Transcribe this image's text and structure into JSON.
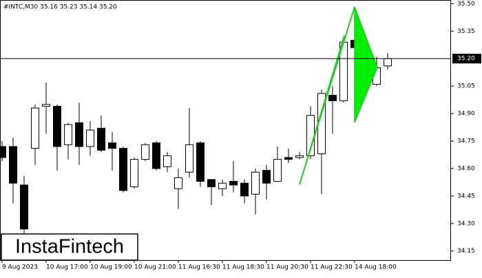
{
  "chart_data": {
    "type": "candlestick",
    "title": "#INTC,M30  35.16 35.23 35.14 35.20",
    "categories": [
      "9 Aug 2023",
      null,
      null,
      null,
      "10 Aug 17:00",
      null,
      null,
      null,
      "10 Aug 19:00",
      null,
      null,
      null,
      "10 Aug 21:00",
      null,
      null,
      null,
      "11 Aug 16:30",
      null,
      null,
      null,
      "11 Aug 18:30",
      null,
      null,
      null,
      "11 Aug 20:30",
      null,
      null,
      null,
      "11 Aug 22:30",
      null,
      null,
      null,
      "14 Aug 18:00",
      null,
      null,
      null
    ],
    "open": [
      34.72,
      34.72,
      34.51,
      34.71,
      34.94,
      34.94,
      34.73,
      34.85,
      34.72,
      34.82,
      34.74,
      34.71,
      34.5,
      34.65,
      34.74,
      34.61,
      34.49,
      34.58,
      34.74,
      34.54,
      34.49,
      34.53,
      34.52,
      34.46,
      34.59,
      34.53,
      34.66,
      34.66,
      34.67,
      34.68,
      35.0,
      34.97,
      35.3,
      35.27,
      35.06,
      35.16
    ],
    "high": [
      34.75,
      34.77,
      34.56,
      34.95,
      35.07,
      34.95,
      34.85,
      34.96,
      34.86,
      34.89,
      34.8,
      34.72,
      34.66,
      34.74,
      34.75,
      34.69,
      34.6,
      34.93,
      34.75,
      34.54,
      34.54,
      34.64,
      34.54,
      34.6,
      34.62,
      34.72,
      34.71,
      34.69,
      34.94,
      35.03,
      35.05,
      35.31,
      35.48,
      35.29,
      35.21,
      35.23
    ],
    "low": [
      34.64,
      34.41,
      34.22,
      34.62,
      34.79,
      34.59,
      34.65,
      34.62,
      34.67,
      34.69,
      34.59,
      34.47,
      34.49,
      34.64,
      34.59,
      34.58,
      34.38,
      34.55,
      34.5,
      34.4,
      34.45,
      34.47,
      34.41,
      34.35,
      34.43,
      34.53,
      34.63,
      34.65,
      34.65,
      34.46,
      34.79,
      34.96,
      35.22,
      35.05,
      35.05,
      35.14
    ],
    "close": [
      34.66,
      34.52,
      34.27,
      34.93,
      34.95,
      34.72,
      34.84,
      34.72,
      34.81,
      34.7,
      34.71,
      34.48,
      34.65,
      34.73,
      34.6,
      34.67,
      34.55,
      34.73,
      34.53,
      34.5,
      34.52,
      34.51,
      34.45,
      34.58,
      34.52,
      34.65,
      34.65,
      34.67,
      34.89,
      35.01,
      34.97,
      35.29,
      35.26,
      35.06,
      35.15,
      35.2
    ],
    "up_color": "#ffffff",
    "down_color": "#000000",
    "ylim": [
      34.1,
      35.52
    ],
    "yticks": [
      {
        "value": 35.5,
        "label": "35.50"
      },
      35.35,
      35.05,
      {
        "value": 34.9,
        "label": "34.90"
      },
      34.75,
      {
        "value": 34.6,
        "label": "34.60"
      },
      34.45,
      {
        "value": 34.3,
        "label": "34.30"
      },
      34.15
    ],
    "price_line": {
      "value": 35.2,
      "label": "35.20"
    },
    "watermark": "InstaFintech"
  }
}
